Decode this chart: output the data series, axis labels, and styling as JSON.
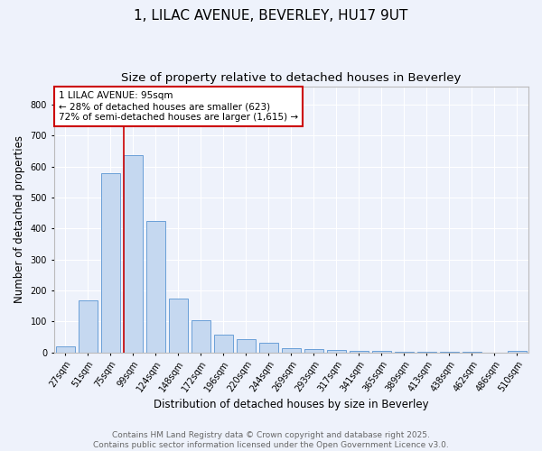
{
  "title": "1, LILAC AVENUE, BEVERLEY, HU17 9UT",
  "subtitle": "Size of property relative to detached houses in Beverley",
  "xlabel": "Distribution of detached houses by size in Beverley",
  "ylabel": "Number of detached properties",
  "bins": [
    "27sqm",
    "51sqm",
    "75sqm",
    "99sqm",
    "124sqm",
    "148sqm",
    "172sqm",
    "196sqm",
    "220sqm",
    "244sqm",
    "269sqm",
    "293sqm",
    "317sqm",
    "341sqm",
    "365sqm",
    "389sqm",
    "413sqm",
    "438sqm",
    "462sqm",
    "486sqm",
    "510sqm"
  ],
  "values": [
    20,
    168,
    580,
    637,
    424,
    174,
    105,
    57,
    42,
    32,
    15,
    10,
    8,
    6,
    5,
    3,
    2,
    1,
    1,
    0,
    6
  ],
  "bar_color": "#c5d8f0",
  "bar_edgecolor": "#6a9fd8",
  "annotation_text": "1 LILAC AVENUE: 95sqm\n← 28% of detached houses are smaller (623)\n72% of semi-detached houses are larger (1,615) →",
  "annotation_box_color": "#ffffff",
  "annotation_box_edgecolor": "#cc0000",
  "vline_color": "#cc0000",
  "vline_bin_index": 3,
  "ylim": [
    0,
    860
  ],
  "yticks": [
    0,
    100,
    200,
    300,
    400,
    500,
    600,
    700,
    800
  ],
  "footer_line1": "Contains HM Land Registry data © Crown copyright and database right 2025.",
  "footer_line2": "Contains public sector information licensed under the Open Government Licence v3.0.",
  "background_color": "#eef2fb",
  "grid_color": "#ffffff",
  "title_fontsize": 11,
  "subtitle_fontsize": 9.5,
  "axis_label_fontsize": 8.5,
  "tick_fontsize": 7,
  "annotation_fontsize": 7.5,
  "footer_fontsize": 6.5
}
